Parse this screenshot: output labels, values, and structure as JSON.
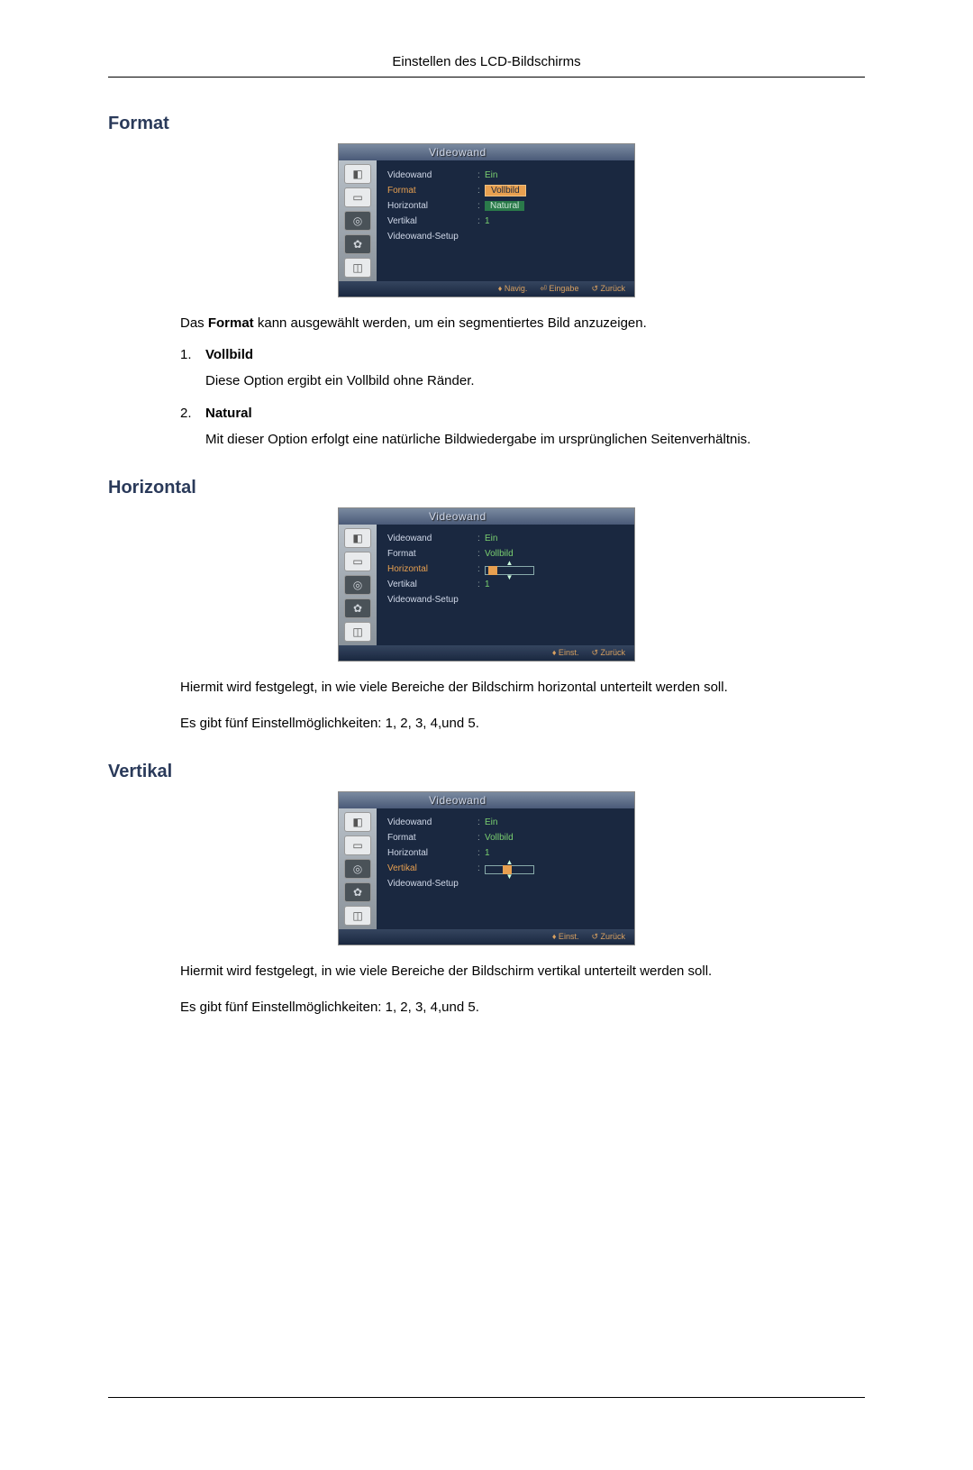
{
  "page": {
    "header": "Einstellen des LCD-Bildschirms"
  },
  "sections": {
    "format": {
      "title": "Format",
      "intro_pre": "Das ",
      "intro_bold": "Format",
      "intro_post": " kann ausgewählt werden, um ein segmentiertes Bild anzuzeigen.",
      "item1_num": "1.",
      "item1_label": "Vollbild",
      "item1_desc": "Diese Option ergibt ein Vollbild ohne Ränder.",
      "item2_num": "2.",
      "item2_label": "Natural",
      "item2_desc": "Mit dieser Option erfolgt eine natürliche Bildwiedergabe im ursprünglichen Seitenverhältnis."
    },
    "horizontal": {
      "title": "Horizontal",
      "p1": "Hiermit wird festgelegt, in wie viele Bereiche der Bildschirm horizontal unterteilt werden soll.",
      "p2": "Es gibt fünf Einstellmöglichkeiten: 1, 2, 3, 4,und 5."
    },
    "vertikal": {
      "title": "Vertikal",
      "p1": "Hiermit wird festgelegt, in wie viele Bereiche der Bildschirm vertikal unterteilt werden soll.",
      "p2": "Es gibt fünf Einstellmöglichkeiten: 1, 2, 3, 4,und 5."
    }
  },
  "osd_common": {
    "title": "Videowand",
    "labels": {
      "videowand": "Videowand",
      "format": "Format",
      "horizontal": "Horizontal",
      "vertikal": "Vertikal",
      "setup": "Videowand-Setup"
    },
    "icons": [
      "◧",
      "▭",
      "◎",
      "✿",
      "◫"
    ]
  },
  "osd1": {
    "highlight": "format",
    "values": {
      "videowand": "Ein",
      "format_opt1": "Vollbild",
      "format_opt2": "Natural",
      "vertikal": "1"
    },
    "footer": [
      "♦ Navig.",
      "⏎ Eingabe",
      "↺ Zurück"
    ],
    "colors": {
      "bg": "#1a2840",
      "highlight_text": "#e8a050",
      "value_text": "#7ad070",
      "sel_box_bg": "#e8a050",
      "green_box_bg": "#2a7a4a"
    }
  },
  "osd2": {
    "highlight": "horizontal",
    "values": {
      "videowand": "Ein",
      "format": "Vollbild",
      "vertikal": "1"
    },
    "slider": {
      "knob_pos_pct": 5
    },
    "footer": [
      "♦ Einst.",
      "↺ Zurück"
    ]
  },
  "osd3": {
    "highlight": "vertikal",
    "values": {
      "videowand": "Ein",
      "format": "Vollbild",
      "horizontal": "1"
    },
    "slider": {
      "knob_pos_pct": 35
    },
    "footer": [
      "♦ Einst.",
      "↺ Zurück"
    ]
  }
}
